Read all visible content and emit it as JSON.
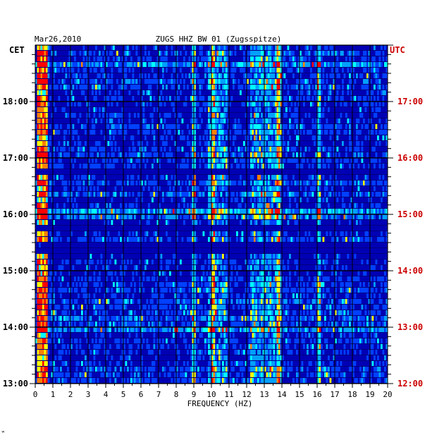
{
  "header": {
    "date": "Mar26,2010",
    "station": "ZUGS HHZ BW 01 (Zugsspitze)",
    "left_zone": "CET",
    "right_zone": "UTC"
  },
  "footer": {
    "mark": "ʷ"
  },
  "colors": {
    "background": "#0000b4",
    "grid": "#000000",
    "utc": "#cc0000",
    "text": "#000000"
  },
  "chart_data": {
    "type": "heatmap",
    "title": "ZUGS HHZ BW 01 (Zugsspitze)",
    "xlabel": "FREQUENCY (HZ)",
    "ylabel": "",
    "xlim": [
      0,
      20
    ],
    "x_ticks": [
      "0",
      "1",
      "2",
      "3",
      "4",
      "5",
      "6",
      "7",
      "8",
      "9",
      "10",
      "11",
      "12",
      "13",
      "14",
      "15",
      "16",
      "17",
      "18",
      "19",
      "20"
    ],
    "left_axis": {
      "name": "CET",
      "ticks": [
        "13:00",
        "14:00",
        "15:00",
        "16:00",
        "17:00",
        "18:00"
      ],
      "range_hours": [
        13,
        19
      ]
    },
    "right_axis": {
      "name": "UTC",
      "ticks": [
        "12:00",
        "13:00",
        "14:00",
        "15:00",
        "16:00",
        "17:00"
      ],
      "range_hours": [
        12,
        18
      ]
    },
    "rows": 60,
    "columns": 200,
    "features": {
      "low_frequency_band_hz": [
        0.1,
        0.7
      ],
      "persistent_lines_hz": [
        9.0,
        10.1,
        13.8,
        16.1
      ],
      "active_bands_hz": [
        [
          12.2,
          14.0
        ],
        [
          9.8,
          10.9
        ]
      ],
      "quiet_periods_cet": [
        "16:45",
        "15:45",
        "15:25"
      ],
      "active_periods_cet": [
        "13:55",
        "16:00",
        "18:40"
      ]
    },
    "colorscale": [
      "#00005a",
      "#0000b4",
      "#0040ff",
      "#00a0ff",
      "#00ffff",
      "#ffff00",
      "#ff8000",
      "#ff0000"
    ],
    "grid": true
  }
}
